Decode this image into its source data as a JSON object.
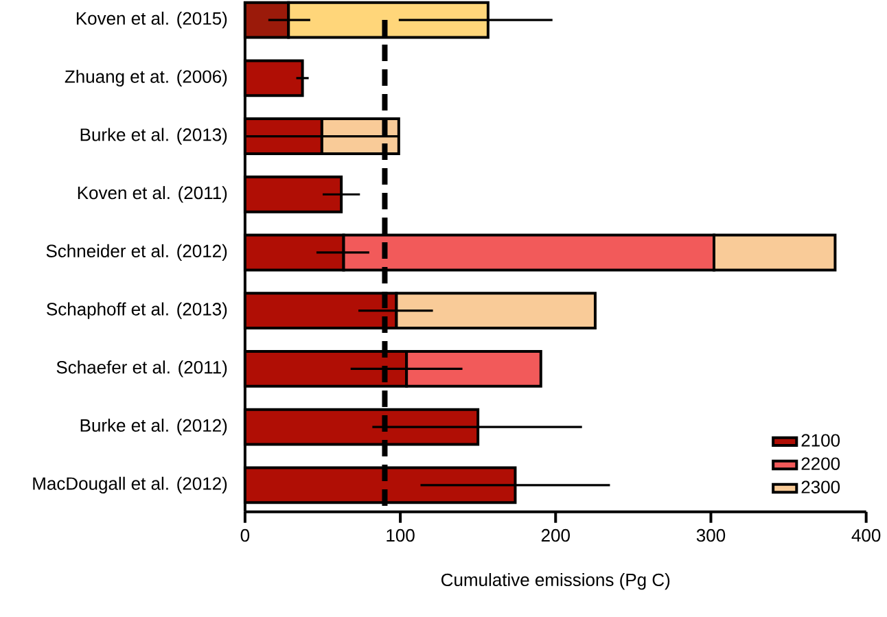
{
  "chart_data": {
    "type": "bar",
    "orientation": "horizontal",
    "stacked": true,
    "xlabel": "Cumulative emissions (Pg C)",
    "categories": [
      "Koven et al. (2015)",
      "Zhuang et at. (2006)",
      "Burke et al. (2013)",
      "Koven et al. (2011)",
      "Schneider et al. (2012)",
      "Schaphoff et al. (2013)",
      "Schaefer et al. (2011)",
      "Burke et al. (2012)",
      "MacDougall et al. (2012)"
    ],
    "series": [
      {
        "name": "2100",
        "color": "#b00e05",
        "colors": [
          "#9b1a0a",
          "#b00e05",
          "#b00e05",
          "#b00e05",
          "#b00e05",
          "#b00e05",
          "#b00e05",
          "#b00e05",
          "#b00e05"
        ],
        "values": [
          28,
          37,
          49.5,
          62,
          63.5,
          97.5,
          104,
          150,
          174
        ],
        "errors": [
          [
            15,
            42
          ],
          [
            33,
            41
          ],
          [
            0,
            99
          ],
          [
            50,
            74
          ],
          [
            46,
            80
          ],
          [
            73,
            121
          ],
          [
            68,
            140
          ],
          [
            82,
            217
          ],
          [
            113,
            235
          ]
        ]
      },
      {
        "name": "2200",
        "color": "#f25a5a",
        "values": [
          null,
          null,
          null,
          null,
          238.5,
          null,
          86.5,
          null,
          null
        ]
      },
      {
        "name": "2300",
        "color": "#f9cb98",
        "colors": [
          "#ffd67a",
          "#f9cb98",
          "#f9cb98",
          "#f9cb98",
          "#f9cb98",
          "#f9cb98",
          "#f9cb98",
          "#f9cb98",
          "#f9cb98"
        ],
        "values": [
          128.5,
          null,
          49.5,
          null,
          78,
          128,
          null,
          null,
          null
        ],
        "errors": [
          [
            99,
            198
          ],
          null,
          null,
          null,
          null,
          null,
          null,
          null,
          null
        ]
      }
    ],
    "xlim": [
      0,
      400
    ],
    "xticks": [
      0,
      100,
      200,
      300,
      400
    ],
    "ref_lines": [
      {
        "axis": "x",
        "value": 90,
        "line_style": "dashed",
        "color": "#000000"
      }
    ],
    "legend": "bottom right",
    "grid": false
  }
}
